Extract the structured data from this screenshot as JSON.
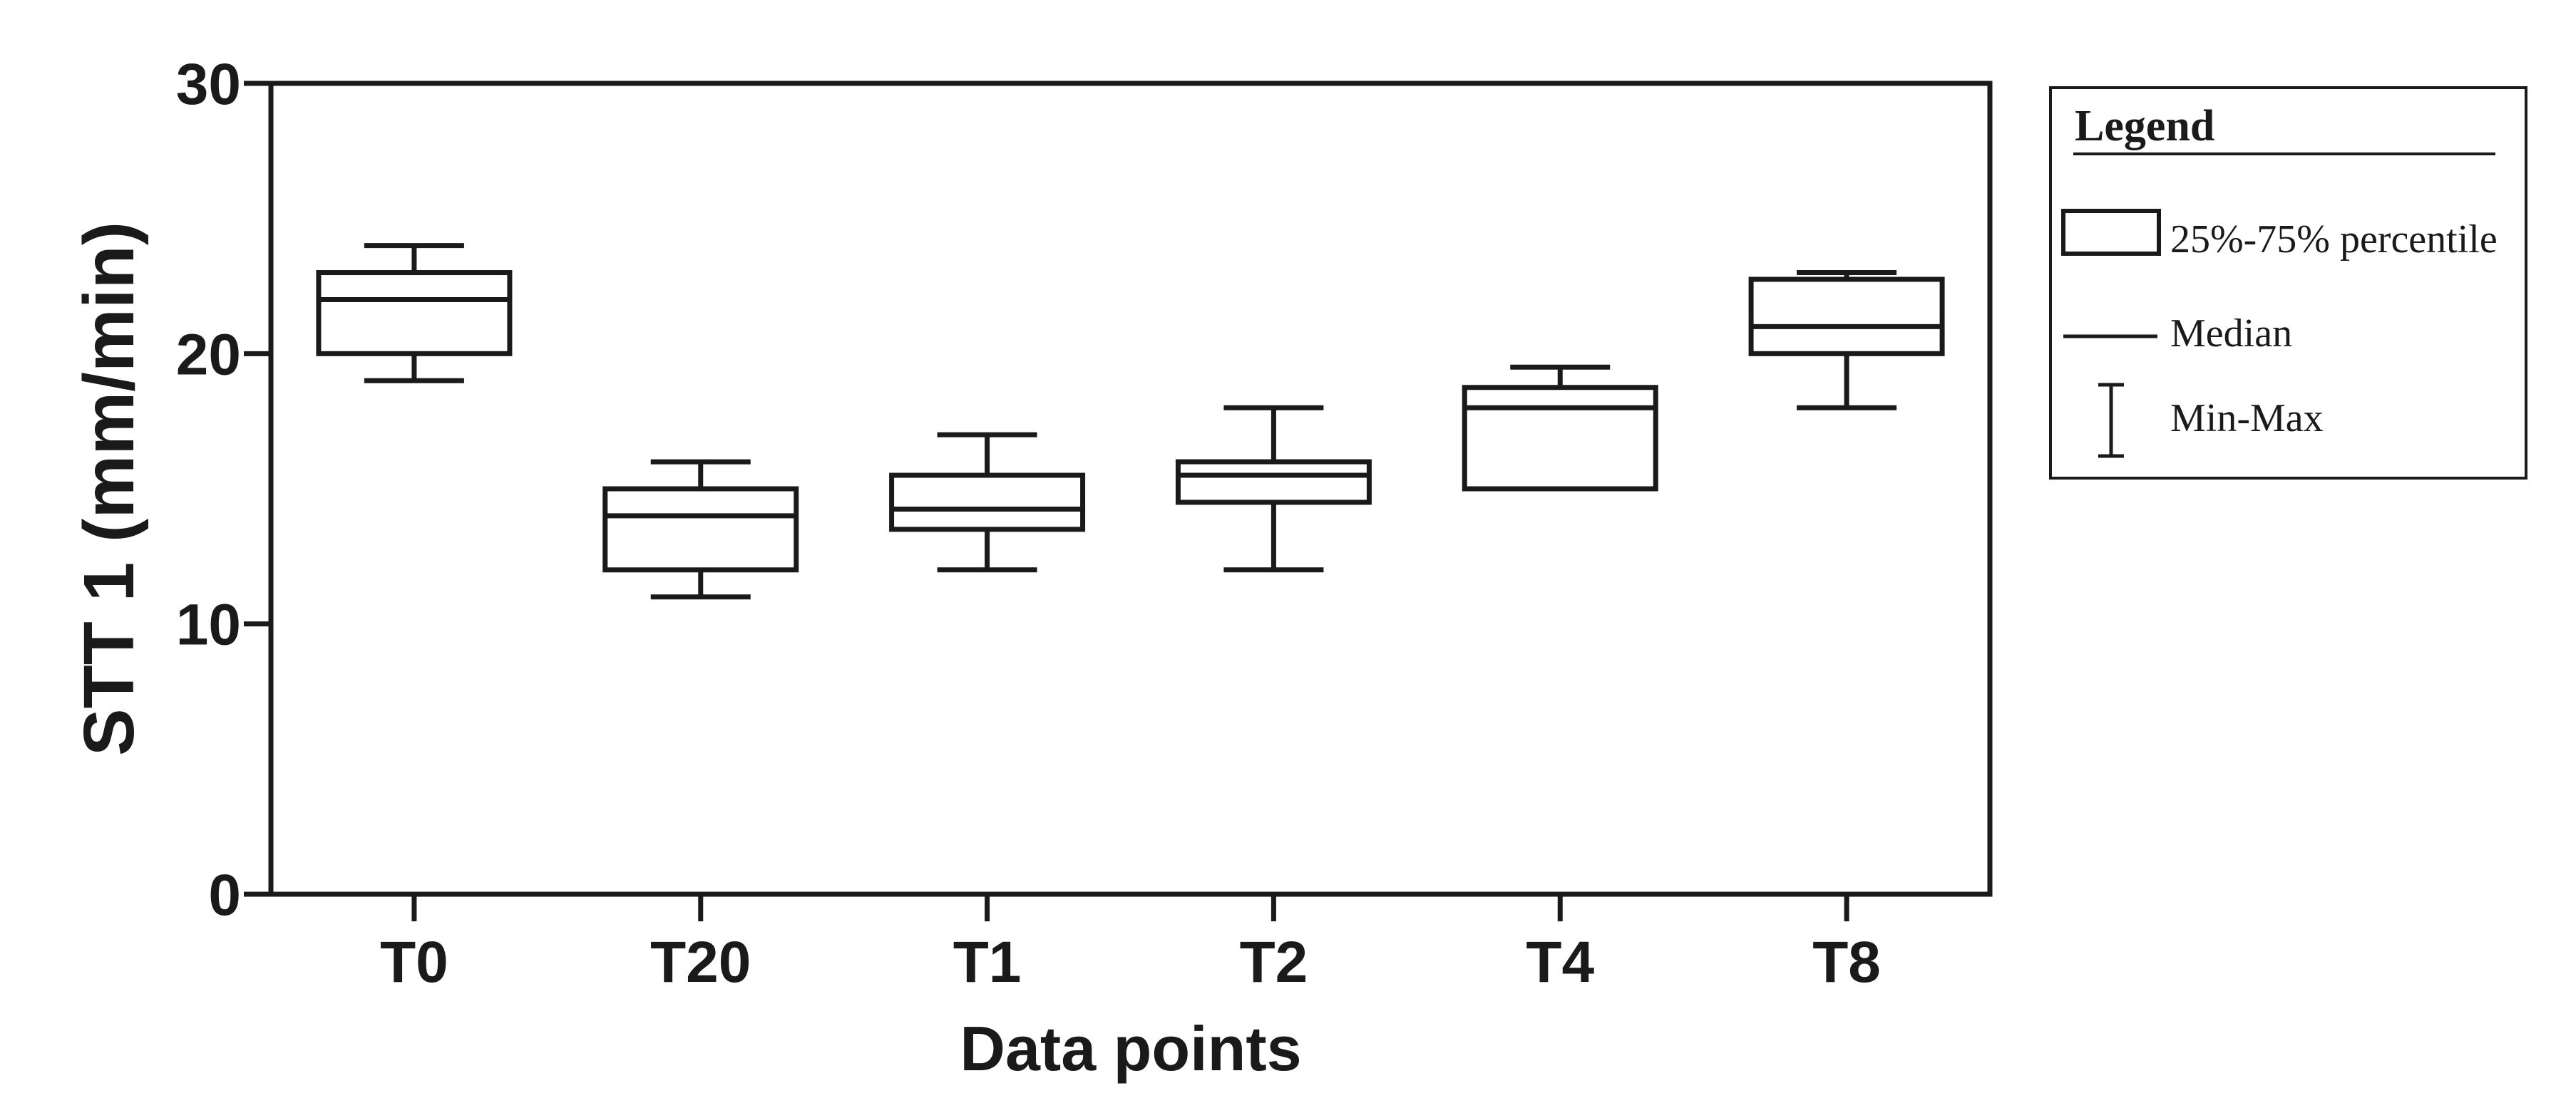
{
  "figure": {
    "background": "#ffffff",
    "ink_color": "#1a1a1a"
  },
  "chart_data": {
    "type": "box",
    "title": "",
    "xlabel": "Data points",
    "ylabel": "STT 1 (mm/min)",
    "y_axis": {
      "min": 0,
      "max": 30,
      "ticks": [
        30,
        20,
        10,
        0
      ]
    },
    "categories": [
      "T0",
      "T20",
      "T1",
      "T2",
      "T4",
      "T8"
    ],
    "series": [
      {
        "label": "T0",
        "min": 19,
        "q1": 20,
        "median": 22,
        "q3": 23,
        "max": 24
      },
      {
        "label": "T20",
        "min": 11,
        "q1": 12,
        "median": 14,
        "q3": 15,
        "max": 16
      },
      {
        "label": "T1",
        "min": 12,
        "q1": 13.5,
        "median": 14.25,
        "q3": 15.5,
        "max": 17
      },
      {
        "label": "T2",
        "min": 12,
        "q1": 14.5,
        "median": 15.5,
        "q3": 16,
        "max": 18
      },
      {
        "label": "T4",
        "min": 15,
        "q1": 15,
        "median": 18,
        "q3": 18.75,
        "max": 19.5
      },
      {
        "label": "T8",
        "min": 18,
        "q1": 20,
        "median": 21,
        "q3": 22.75,
        "max": 23
      }
    ],
    "grid": false,
    "legend": {
      "position": "top-right",
      "title": "Legend",
      "items": [
        {
          "icon": "box",
          "label": "25%-75% percentile"
        },
        {
          "icon": "median-line",
          "label": "Median"
        },
        {
          "icon": "min-max-whisker",
          "label": "Min-Max"
        }
      ]
    }
  }
}
